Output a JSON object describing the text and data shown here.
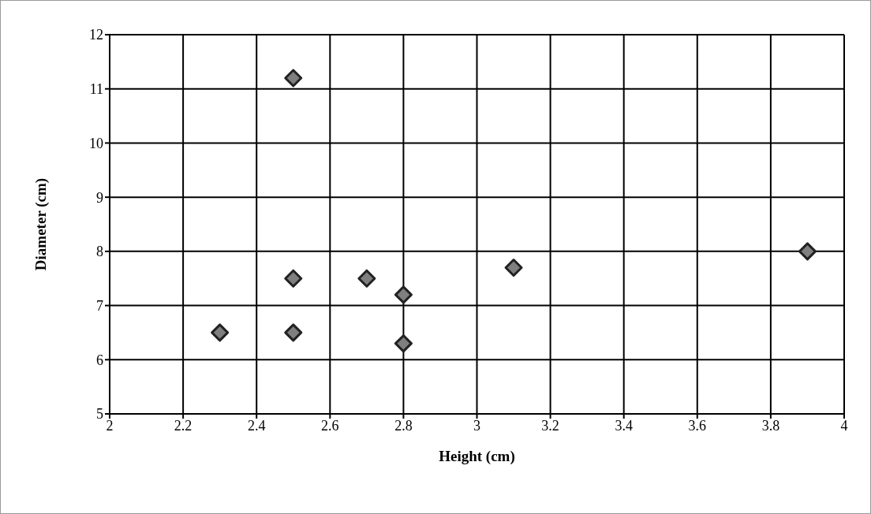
{
  "chart_data": {
    "type": "scatter",
    "xlabel": "Height (cm)",
    "ylabel": "Diameter (cm)",
    "x": [
      2.3,
      2.5,
      2.5,
      2.5,
      2.7,
      2.8,
      2.8,
      3.1,
      3.9
    ],
    "values": [
      6.5,
      11.2,
      7.5,
      6.5,
      7.5,
      7.2,
      6.3,
      7.7,
      8.0
    ],
    "color": "#7f7f7f",
    "marker": "diamond",
    "xlim": [
      2,
      4
    ],
    "xticks": [
      2,
      2.2,
      2.4,
      2.6,
      2.8,
      3,
      3.2,
      3.4,
      3.6,
      3.8,
      4
    ],
    "ylim": [
      5,
      12
    ],
    "yticks": [
      5,
      6,
      7,
      8,
      9,
      10,
      11,
      12
    ],
    "grid": true,
    "legend": false
  }
}
